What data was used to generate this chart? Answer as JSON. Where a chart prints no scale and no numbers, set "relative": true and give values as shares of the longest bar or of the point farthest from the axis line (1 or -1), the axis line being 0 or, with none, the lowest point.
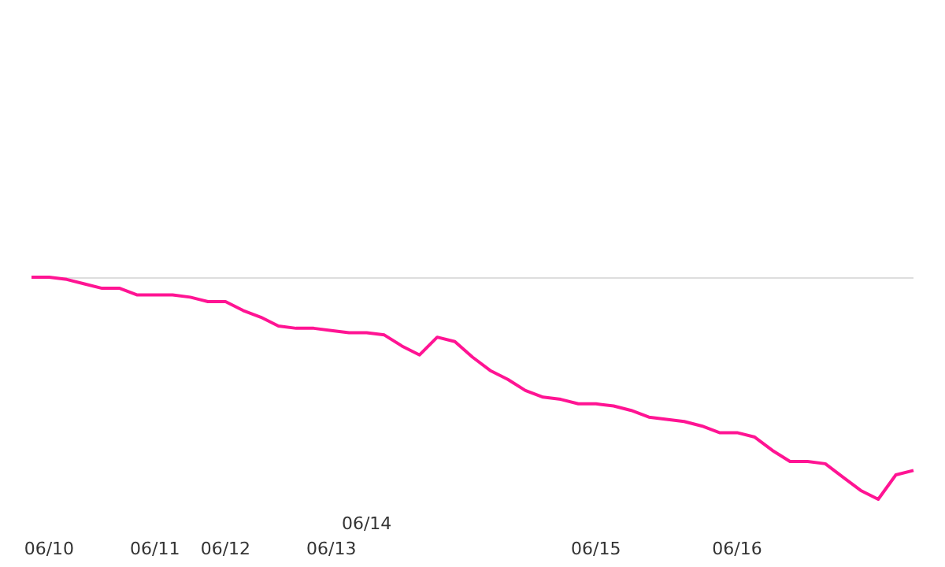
{
  "chart_data": {
    "type": "line",
    "relative": true,
    "categories": [
      null,
      "06/10",
      null,
      null,
      null,
      null,
      null,
      "06/11",
      null,
      null,
      null,
      "06/12",
      null,
      null,
      null,
      null,
      null,
      "06/13",
      null,
      "06/14",
      null,
      null,
      null,
      null,
      null,
      null,
      null,
      null,
      null,
      null,
      null,
      null,
      "06/15",
      null,
      null,
      null,
      null,
      null,
      null,
      null,
      "06/16",
      null,
      null,
      null,
      null,
      null,
      null,
      null,
      null,
      null,
      null
    ],
    "series": [
      {
        "color": "#ff1493",
        "values": [
          0,
          0,
          -0.01,
          -0.03,
          -0.05,
          -0.05,
          -0.08,
          -0.08,
          -0.08,
          -0.09,
          -0.11,
          -0.11,
          -0.15,
          -0.18,
          -0.22,
          -0.23,
          -0.23,
          -0.24,
          -0.25,
          -0.25,
          -0.26,
          -0.31,
          -0.35,
          -0.27,
          -0.29,
          -0.36,
          -0.42,
          -0.46,
          -0.51,
          -0.54,
          -0.55,
          -0.57,
          -0.57,
          -0.58,
          -0.6,
          -0.63,
          -0.64,
          -0.65,
          -0.67,
          -0.7,
          -0.7,
          -0.72,
          -0.78,
          -0.83,
          -0.83,
          -0.84,
          -0.9,
          -0.96,
          -1,
          -0.89,
          -0.87
        ]
      }
    ],
    "grid": false,
    "legend": false,
    "marker": "none",
    "line_style": "solid"
  }
}
